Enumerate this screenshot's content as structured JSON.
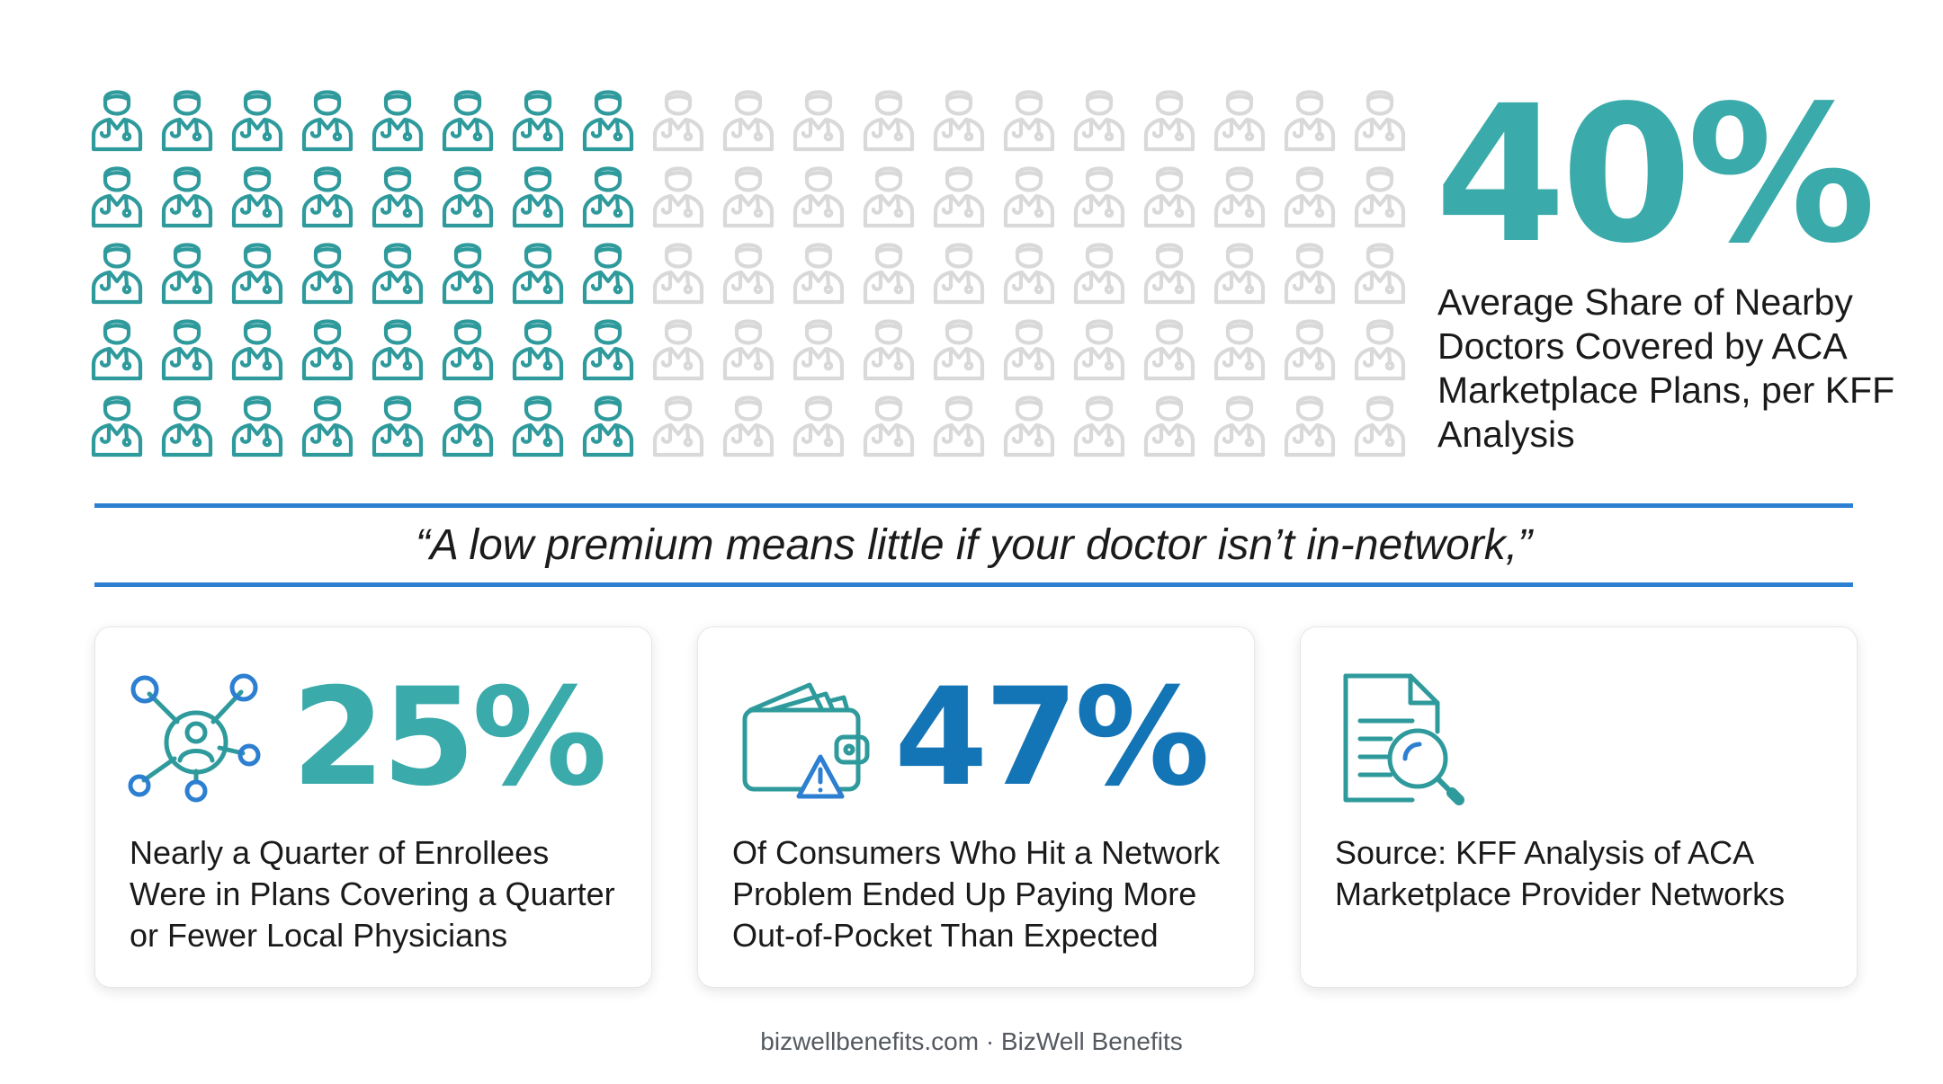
{
  "colors": {
    "teal": "#3aaaaa",
    "icon_teal": "#2f9a9c",
    "inactive": "#d9d9d9",
    "blue": "#1374b6",
    "rule_blue": "#2d7fd1"
  },
  "headline": {
    "percent": "40%",
    "description": "Average Share of Nearby Doctors Covered by ACA Marketplace Plans, per KFF Analysis"
  },
  "waffle": {
    "icon": "doctor-icon",
    "rows": 5,
    "columns": 19,
    "highlighted_columns": 8
  },
  "quote": "“A low premium means little if your doctor isn’t in-network,”",
  "cards": [
    {
      "icon": "network-person-icon",
      "percent": "25%",
      "text": "Nearly a Quarter of Enrollees Were in Plans Covering a Quarter or Fewer Local Physicians"
    },
    {
      "icon": "wallet-warning-icon",
      "percent": "47%",
      "text": "Of Consumers Who Hit a Network Problem Ended Up Paying More Out-of-Pocket Than Expected"
    },
    {
      "icon": "document-search-icon",
      "text": "Source: KFF Analysis of ACA Marketplace Provider Networks"
    }
  ],
  "footer": "bizwellbenefits.com · BizWell Benefits"
}
